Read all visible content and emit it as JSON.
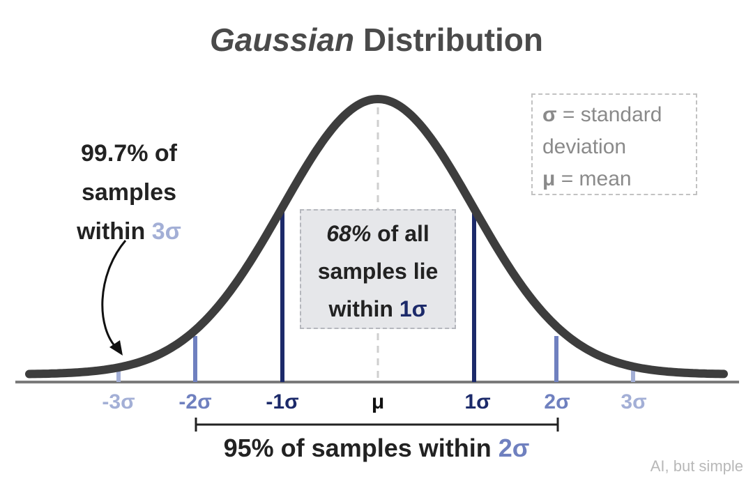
{
  "title": {
    "italic": "Gaussian",
    "rest": " Distribution"
  },
  "legend": {
    "sigma_symbol": "σ",
    "sigma_text": " = standard",
    "sigma_text2": "deviation",
    "mu_symbol": "μ",
    "mu_text": " = mean"
  },
  "callout": {
    "pct": "68%",
    "line1_rest": " of all",
    "line2": "samples lie",
    "line3_pre": "within ",
    "line3_sig": "1σ"
  },
  "left_note": {
    "line1": "99.7% of",
    "line2": "samples",
    "line3_pre": "within ",
    "line3_sig": "3σ"
  },
  "ticks": [
    {
      "label": "-3σ",
      "offset": -3,
      "color": "light-blue"
    },
    {
      "label": "-2σ",
      "offset": -2,
      "color": "mid-blue"
    },
    {
      "label": "-1σ",
      "offset": -1,
      "color": "dark-blue"
    },
    {
      "label": "μ",
      "offset": 0,
      "color": "black"
    },
    {
      "label": "1σ",
      "offset": 1,
      "color": "dark-blue"
    },
    {
      "label": "2σ",
      "offset": 2,
      "color": "mid-blue"
    },
    {
      "label": "3σ",
      "offset": 3,
      "color": "light-blue"
    }
  ],
  "bottom_note": {
    "pre": "95% of samples within ",
    "sig": "2σ"
  },
  "watermark": "AI, but simple",
  "colors": {
    "curve": "#3d3d3d",
    "axis": "#7a7a7a",
    "dark_blue": "#1c2a6a",
    "mid_blue": "#6f80bf",
    "light_blue": "#a3afd6",
    "mean_line": "#cfcfcf",
    "bracket": "#222222"
  }
}
